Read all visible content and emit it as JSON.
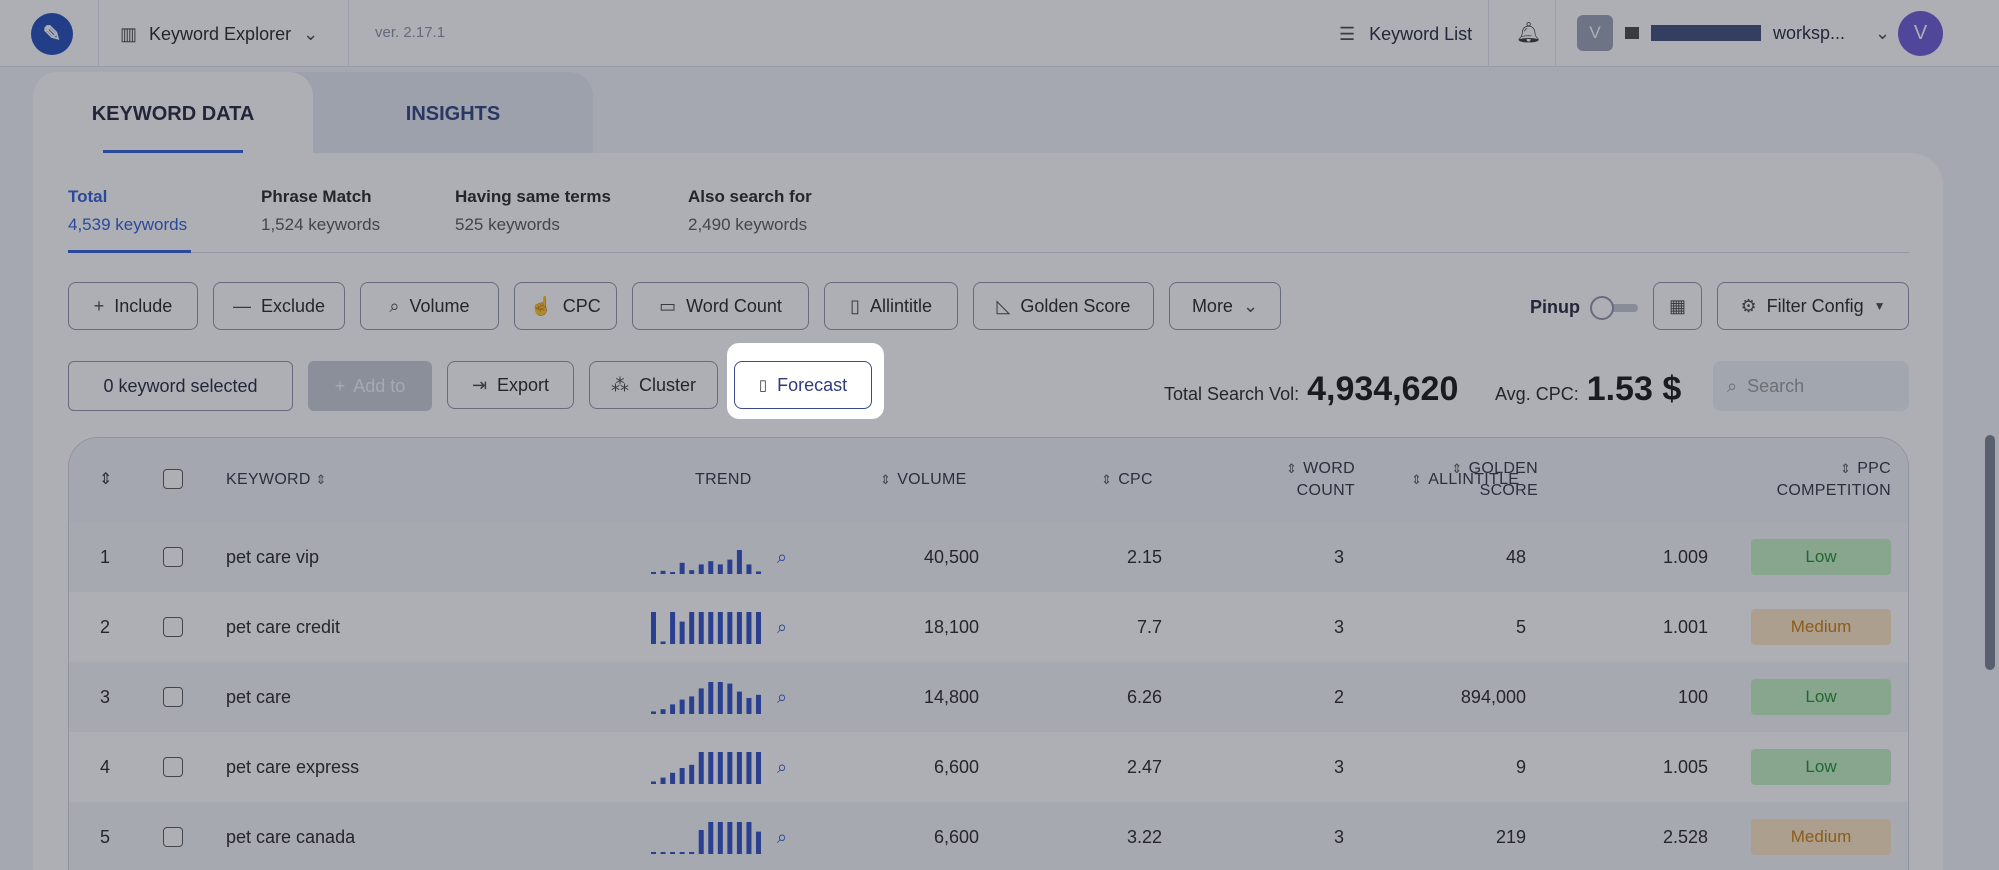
{
  "topbar": {
    "app_name": "Keyword Explorer",
    "version": "ver. 2.17.1",
    "keyword_list": "Keyword List",
    "workspace_initial": "V",
    "workspace_name": "worksp...",
    "user_initial": "V"
  },
  "tabs": [
    {
      "label": "KEYWORD DATA",
      "active": true
    },
    {
      "label": "INSIGHTS",
      "active": false
    }
  ],
  "subtabs": [
    {
      "title": "Total",
      "count": "4,539 keywords",
      "active": true
    },
    {
      "title": "Phrase Match",
      "count": "1,524 keywords"
    },
    {
      "title": "Having same terms",
      "count": "525 keywords"
    },
    {
      "title": "Also search for",
      "count": "2,490 keywords"
    }
  ],
  "filters": {
    "include": "Include",
    "exclude": "Exclude",
    "volume": "Volume",
    "cpc": "CPC",
    "word_count": "Word Count",
    "allintitle": "Allintitle",
    "golden_score": "Golden Score",
    "more": "More",
    "pinup": "Pinup",
    "filter_config": "Filter Config"
  },
  "actions": {
    "selected": "0 keyword selected",
    "add_to": "Add to",
    "export": "Export",
    "cluster": "Cluster",
    "forecast": "Forecast"
  },
  "totals": {
    "search_vol_label": "Total Search Vol:",
    "search_vol_value": "4,934,620",
    "avg_cpc_label": "Avg. CPC:",
    "avg_cpc_value": "1.53 $"
  },
  "search": {
    "placeholder": "Search"
  },
  "table": {
    "headers": {
      "keyword": "KEYWORD",
      "trend": "TREND",
      "volume": "VOLUME",
      "cpc": "CPC",
      "word_count_1": "WORD",
      "word_count_2": "COUNT",
      "allintitle": "ALLINTITLE",
      "golden_1": "GOLDEN",
      "golden_2": "SCORE",
      "ppc_1": "PPC",
      "ppc_2": "COMPETITION"
    },
    "rows": [
      {
        "num": "1",
        "keyword": "pet care vip",
        "volume": "40,500",
        "cpc": "2.15",
        "word_count": "3",
        "allintitle": "48",
        "golden": "1.009",
        "ppc": "Low",
        "trend": [
          0.05,
          0.1,
          0.05,
          0.35,
          0.12,
          0.3,
          0.4,
          0.3,
          0.45,
          0.75,
          0.3,
          0.08
        ]
      },
      {
        "num": "2",
        "keyword": "pet care credit",
        "volume": "18,100",
        "cpc": "7.7",
        "word_count": "3",
        "allintitle": "5",
        "golden": "1.001",
        "ppc": "Medium",
        "trend": [
          1,
          0.08,
          1,
          0.7,
          1,
          1,
          1,
          1,
          1,
          1,
          1,
          1
        ]
      },
      {
        "num": "3",
        "keyword": "pet care",
        "volume": "14,800",
        "cpc": "6.26",
        "word_count": "2",
        "allintitle": "894,000",
        "golden": "100",
        "ppc": "Low",
        "trend": [
          0.08,
          0.15,
          0.3,
          0.45,
          0.55,
          0.8,
          1,
          1,
          0.95,
          0.7,
          0.5,
          0.6
        ]
      },
      {
        "num": "4",
        "keyword": "pet care express",
        "volume": "6,600",
        "cpc": "2.47",
        "word_count": "3",
        "allintitle": "9",
        "golden": "1.005",
        "ppc": "Low",
        "trend": [
          0.08,
          0.2,
          0.35,
          0.5,
          0.6,
          1,
          1,
          1,
          1,
          1,
          1,
          1
        ]
      },
      {
        "num": "5",
        "keyword": "pet care canada",
        "volume": "6,600",
        "cpc": "3.22",
        "word_count": "3",
        "allintitle": "219",
        "golden": "2.528",
        "ppc": "Medium",
        "trend": [
          0.06,
          0.06,
          0.06,
          0.06,
          0.06,
          0.75,
          1,
          1,
          1,
          1,
          1,
          0.7
        ]
      }
    ]
  },
  "colors": {
    "accent": "#2d5bd7",
    "low_bg": "#c4efc0",
    "low_text": "#1e8b2d",
    "medium_bg": "#fde6c0",
    "medium_text": "#c8790a",
    "trend_bar": "#2d4bc4"
  }
}
